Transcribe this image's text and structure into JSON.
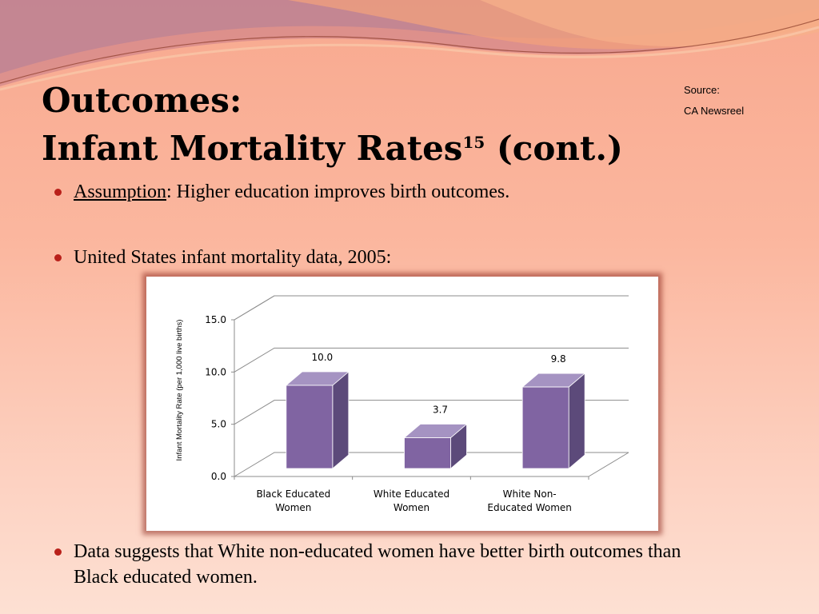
{
  "slide": {
    "title_line1": "Outcomes:",
    "title_line2": "Infant Mortality Rates",
    "title_sup": "15",
    "title_suffix": " (cont.)",
    "source_label": "Source:",
    "source_value": "CA Newsreel",
    "bullets": [
      {
        "underlined": "Assumption",
        "text": ":  Higher education improves birth outcomes."
      },
      {
        "text": "United States infant mortality data, 2005:"
      },
      {
        "text": "Data suggests that White non-educated women have better birth outcomes than Black educated women."
      }
    ]
  },
  "colors": {
    "bar_front": "#8064a2",
    "bar_side": "#5c4a7a",
    "bar_top": "#a593c2",
    "bullet": "#b9201a"
  },
  "chart_data": {
    "type": "bar",
    "ylabel": "Infant Mortality  Rate  (per 1,000 live births)",
    "ylim": [
      0,
      15
    ],
    "yticks": [
      "0.0",
      "5.0",
      "10.0",
      "15.0"
    ],
    "ytick_values": [
      0,
      5,
      10,
      15
    ],
    "categories": [
      [
        "Black Educated",
        "Women"
      ],
      [
        "White Educated",
        "Women"
      ],
      [
        "White Non-",
        "Educated Women"
      ]
    ],
    "values": [
      10.0,
      3.7,
      9.8
    ],
    "value_labels": [
      "10.0",
      "3.7",
      "9.8"
    ],
    "grid": true,
    "legend": "none"
  }
}
